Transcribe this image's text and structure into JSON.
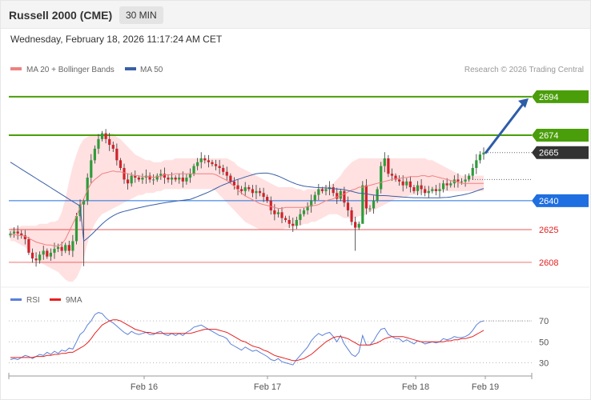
{
  "header": {
    "instrument": "Russell 2000 (CME)",
    "timeframe": "30 MIN",
    "datetime": "Wednesday, February 18, 2026 11:17:24 AM CET"
  },
  "legend": {
    "ma20_label": "MA 20 + Bollinger Bands",
    "ma50_label": "MA 50",
    "credit": "Research © 2026 Trading Central"
  },
  "rsi_legend": {
    "rsi_label": "RSI",
    "ma9_label": "9MA"
  },
  "colors": {
    "up": "#2e9c3a",
    "down": "#d0222a",
    "ma20": "#f08080",
    "ma50": "#3a5fa8",
    "bands": "#ffdcdc",
    "green_level": "#4a9e0a",
    "blue_level": "#1f6fe0",
    "red_level": "#e02020",
    "current": "#333333",
    "rsi": "#5a80d8",
    "rsi_ma": "#e82020"
  },
  "chart_data": [
    {
      "type": "candlestick",
      "y_range": [
        2598,
        2706
      ],
      "x_ticks": [
        "Feb 16",
        "Feb 17",
        "Feb 18",
        "Feb 19"
      ],
      "current_price": 2665,
      "levels": [
        {
          "value": 2694,
          "label": "2694",
          "kind": "resistance-green"
        },
        {
          "value": 2674,
          "label": "2674",
          "kind": "resistance-green"
        },
        {
          "value": 2640,
          "label": "2640",
          "kind": "pivot-blue"
        },
        {
          "value": 2625,
          "label": "2625",
          "kind": "support-red"
        },
        {
          "value": 2608,
          "label": "2608",
          "kind": "support-red"
        }
      ],
      "forecast_arrow": {
        "from": 2665,
        "to": 2694
      },
      "close": [
        2623,
        2624,
        2623,
        2622,
        2620,
        2613,
        2610,
        2609,
        2612,
        2614,
        2611,
        2613,
        2615,
        2616,
        2614,
        2617,
        2614,
        2619,
        2632,
        2638,
        2640,
        2652,
        2661,
        2667,
        2672,
        2675,
        2672,
        2669,
        2667,
        2661,
        2657,
        2651,
        2649,
        2653,
        2652,
        2651,
        2652,
        2653,
        2651,
        2651,
        2653,
        2654,
        2652,
        2651,
        2652,
        2651,
        2652,
        2650,
        2652,
        2654,
        2658,
        2660,
        2662,
        2661,
        2660,
        2659,
        2658,
        2657,
        2655,
        2653,
        2650,
        2648,
        2646,
        2645,
        2647,
        2646,
        2644,
        2645,
        2644,
        2642,
        2640,
        2635,
        2633,
        2634,
        2631,
        2630,
        2628,
        2627,
        2630,
        2633,
        2635,
        2637,
        2640,
        2643,
        2646,
        2645,
        2646,
        2647,
        2644,
        2641,
        2645,
        2639,
        2635,
        2629,
        2626,
        2628,
        2648,
        2636,
        2636,
        2640,
        2646,
        2658,
        2662,
        2654,
        2653,
        2651,
        2650,
        2648,
        2650,
        2647,
        2645,
        2648,
        2646,
        2644,
        2645,
        2646,
        2645,
        2646,
        2649,
        2648,
        2649,
        2651,
        2650,
        2650,
        2651,
        2653,
        2657,
        2661,
        2664,
        2665
      ],
      "ma20_band": {
        "upper": [
          2626,
          2626,
          2626,
          2627,
          2627,
          2627,
          2627,
          2627,
          2628,
          2628,
          2628,
          2629,
          2629,
          2630,
          2634,
          2641,
          2650,
          2658,
          2664,
          2669,
          2672,
          2673,
          2674,
          2674,
          2674,
          2675,
          2675,
          2675,
          2675,
          2673,
          2672,
          2670,
          2668,
          2666,
          2664,
          2663,
          2662,
          2661,
          2661,
          2660,
          2660,
          2660,
          2661,
          2661,
          2661,
          2662,
          2662,
          2662,
          2662,
          2662,
          2662,
          2662,
          2662,
          2662,
          2662,
          2662,
          2662,
          2662,
          2662,
          2662,
          2661,
          2660,
          2658,
          2657,
          2656,
          2655,
          2654,
          2653,
          2652,
          2651,
          2650,
          2649,
          2648,
          2647,
          2647,
          2647,
          2647,
          2647,
          2646,
          2646,
          2645,
          2646,
          2646,
          2646,
          2646,
          2647,
          2648,
          2648,
          2649,
          2651,
          2653,
          2656,
          2658,
          2660,
          2661,
          2662,
          2662,
          2662,
          2662,
          2662,
          2662,
          2662,
          2662,
          2662,
          2662,
          2662,
          2662,
          2662,
          2662,
          2662,
          2662,
          2662,
          2662,
          2662,
          2661,
          2661,
          2660,
          2659,
          2658,
          2657,
          2656,
          2655,
          2654,
          2653,
          2653,
          2653,
          2653,
          2653,
          2653,
          2653
        ],
        "lower": [
          2619,
          2619,
          2618,
          2617,
          2616,
          2614,
          2612,
          2610,
          2608,
          2607,
          2606,
          2605,
          2604,
          2603,
          2601,
          2599,
          2598,
          2598,
          2600,
          2604,
          2610,
          2618,
          2624,
          2628,
          2631,
          2633,
          2634,
          2635,
          2636,
          2637,
          2638,
          2639,
          2640,
          2641,
          2642,
          2643,
          2643,
          2644,
          2644,
          2644,
          2645,
          2645,
          2646,
          2646,
          2646,
          2646,
          2646,
          2646,
          2646,
          2646,
          2646,
          2646,
          2646,
          2646,
          2646,
          2646,
          2645,
          2643,
          2641,
          2639,
          2637,
          2635,
          2633,
          2631,
          2629,
          2628,
          2627,
          2626,
          2625,
          2625,
          2625,
          2625,
          2625,
          2625,
          2625,
          2626,
          2626,
          2626,
          2627,
          2627,
          2628,
          2628,
          2629,
          2629,
          2630,
          2631,
          2632,
          2633,
          2633,
          2633,
          2632,
          2631,
          2631,
          2631,
          2631,
          2632,
          2632,
          2633,
          2634,
          2635,
          2636,
          2637,
          2638,
          2639,
          2640,
          2641,
          2641,
          2642,
          2642,
          2643,
          2643,
          2643,
          2644,
          2644,
          2644,
          2645,
          2645,
          2645,
          2645,
          2645,
          2645,
          2645,
          2645,
          2645,
          2645,
          2645,
          2645,
          2645,
          2645,
          2645
        ]
      }
    },
    {
      "type": "line",
      "title": "",
      "y_range": [
        25,
        80
      ],
      "y_ticks": [
        70,
        50,
        30
      ],
      "series": [
        {
          "name": "RSI",
          "values": [
            33,
            34,
            33,
            35,
            37,
            36,
            34,
            36,
            38,
            37,
            40,
            38,
            41,
            39,
            42,
            41,
            44,
            43,
            50,
            57,
            60,
            66,
            70,
            76,
            78,
            77,
            73,
            70,
            68,
            65,
            62,
            59,
            57,
            60,
            58,
            57,
            58,
            59,
            57,
            57,
            59,
            60,
            57,
            56,
            58,
            56,
            58,
            56,
            59,
            61,
            64,
            65,
            66,
            64,
            62,
            60,
            58,
            56,
            55,
            53,
            48,
            46,
            44,
            42,
            45,
            43,
            41,
            42,
            40,
            38,
            36,
            33,
            32,
            34,
            31,
            30,
            29,
            28,
            33,
            37,
            41,
            45,
            51,
            55,
            58,
            56,
            58,
            59,
            55,
            50,
            56,
            48,
            43,
            38,
            36,
            40,
            56,
            47,
            47,
            51,
            57,
            62,
            63,
            57,
            55,
            53,
            53,
            50,
            52,
            50,
            48,
            51,
            50,
            48,
            49,
            50,
            49,
            50,
            53,
            52,
            53,
            55,
            54,
            54,
            55,
            57,
            61,
            66,
            69,
            70
          ]
        },
        {
          "name": "9MA",
          "values": [
            35,
            35,
            35,
            35,
            35,
            35,
            35,
            36,
            36,
            36,
            37,
            37,
            38,
            38,
            39,
            39,
            40,
            40,
            42,
            44,
            46,
            49,
            53,
            58,
            62,
            66,
            68,
            70,
            71,
            71,
            70,
            68,
            66,
            64,
            62,
            61,
            60,
            59,
            59,
            58,
            58,
            58,
            58,
            58,
            58,
            58,
            58,
            58,
            58,
            58,
            59,
            60,
            61,
            62,
            62,
            62,
            62,
            61,
            60,
            59,
            57,
            55,
            53,
            51,
            50,
            48,
            46,
            45,
            44,
            42,
            41,
            39,
            37,
            36,
            35,
            34,
            33,
            32,
            32,
            33,
            34,
            36,
            38,
            41,
            44,
            47,
            50,
            52,
            54,
            55,
            55,
            54,
            53,
            51,
            49,
            47,
            47,
            47,
            47,
            48,
            49,
            51,
            53,
            54,
            55,
            55,
            55,
            55,
            54,
            53,
            52,
            51,
            50,
            50,
            50,
            50,
            50,
            50,
            50,
            51,
            51,
            52,
            52,
            53,
            53,
            54,
            55,
            57,
            59,
            61
          ]
        }
      ]
    }
  ]
}
